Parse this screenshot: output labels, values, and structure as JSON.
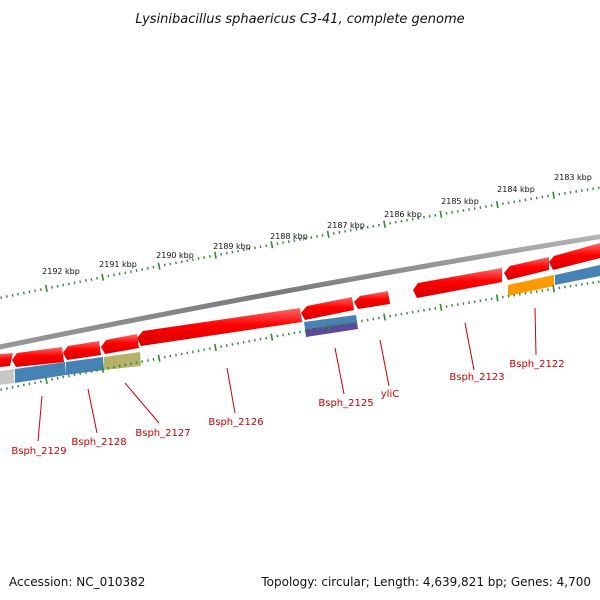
{
  "title": "Lysinibacillus sphaericus C3-41, complete genome",
  "footer": {
    "accession": "Accession: NC_010382",
    "summary": "Topology: circular; Length: 4,639,821 bp; Genes: 4,700"
  },
  "colors": {
    "backbone": "#808080",
    "cds": "#ff0000",
    "ticks": "#2e8b2e",
    "label": "#cc0000",
    "feature_blue": "#4682b4",
    "feature_olive": "#b5b36b",
    "feature_orange": "#ff9900",
    "feature_purple": "#5b4a9c",
    "feature_gray": "#c8c8c8"
  },
  "scale_labels": [
    "2183 kbp",
    "2184 kbp",
    "2185 kbp",
    "2186 kbp",
    "2187 kbp",
    "2188 kbp",
    "2189 kbp",
    "2190 kbp",
    "2191 kbp",
    "2192 kbp"
  ],
  "gene_labels": [
    "Bsph_2129",
    "Bsph_2128",
    "Bsph_2127",
    "Bsph_2126",
    "Bsph_2125",
    "yliC",
    "Bsph_2123",
    "Bsph_2122"
  ]
}
